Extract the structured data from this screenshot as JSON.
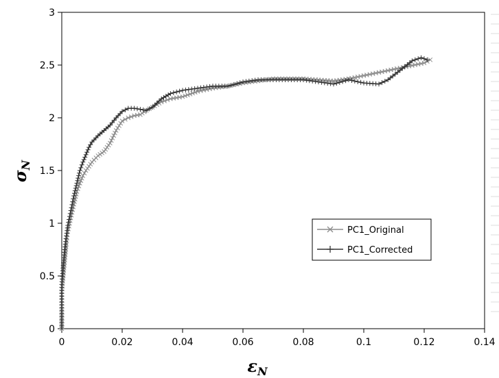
{
  "chart_data": {
    "type": "line",
    "title": "",
    "xlabel": "ε",
    "xlabel_sub": "N",
    "ylabel": "σ",
    "ylabel_sub": "N",
    "xlim": [
      0,
      0.14
    ],
    "ylim": [
      0,
      3
    ],
    "x_ticks": [
      "0",
      "0.02",
      "0.04",
      "0.06",
      "0.08",
      "0.1",
      "0.12",
      "0.14"
    ],
    "y_ticks": [
      "0",
      "0.5",
      "1",
      "1.5",
      "2",
      "2.5",
      "3"
    ],
    "grid": false,
    "legend_position": "lower-right",
    "series": [
      {
        "name": "PC1_Original",
        "color": "#8c8c8c",
        "marker": "x",
        "points": [
          [
            0,
            0
          ],
          [
            0,
            0.35
          ],
          [
            0.0005,
            0.5
          ],
          [
            0.001,
            0.65
          ],
          [
            0.0015,
            0.8
          ],
          [
            0.002,
            0.92
          ],
          [
            0.003,
            1.05
          ],
          [
            0.004,
            1.18
          ],
          [
            0.005,
            1.3
          ],
          [
            0.006,
            1.38
          ],
          [
            0.007,
            1.45
          ],
          [
            0.008,
            1.5
          ],
          [
            0.009,
            1.54
          ],
          [
            0.01,
            1.58
          ],
          [
            0.012,
            1.64
          ],
          [
            0.014,
            1.68
          ],
          [
            0.016,
            1.76
          ],
          [
            0.018,
            1.88
          ],
          [
            0.02,
            1.97
          ],
          [
            0.022,
            2.0
          ],
          [
            0.024,
            2.02
          ],
          [
            0.026,
            2.03
          ],
          [
            0.028,
            2.07
          ],
          [
            0.03,
            2.1
          ],
          [
            0.033,
            2.15
          ],
          [
            0.036,
            2.18
          ],
          [
            0.04,
            2.2
          ],
          [
            0.045,
            2.25
          ],
          [
            0.05,
            2.28
          ],
          [
            0.055,
            2.3
          ],
          [
            0.06,
            2.33
          ],
          [
            0.065,
            2.35
          ],
          [
            0.07,
            2.37
          ],
          [
            0.075,
            2.37
          ],
          [
            0.08,
            2.37
          ],
          [
            0.085,
            2.36
          ],
          [
            0.09,
            2.35
          ],
          [
            0.095,
            2.37
          ],
          [
            0.1,
            2.4
          ],
          [
            0.105,
            2.43
          ],
          [
            0.11,
            2.46
          ],
          [
            0.115,
            2.49
          ],
          [
            0.12,
            2.52
          ],
          [
            0.122,
            2.55
          ]
        ]
      },
      {
        "name": "PC1_Corrected",
        "color": "#333333",
        "marker": "+",
        "points": [
          [
            0,
            0
          ],
          [
            0,
            0.42
          ],
          [
            0.0005,
            0.6
          ],
          [
            0.001,
            0.75
          ],
          [
            0.0015,
            0.88
          ],
          [
            0.002,
            0.98
          ],
          [
            0.003,
            1.12
          ],
          [
            0.004,
            1.26
          ],
          [
            0.005,
            1.38
          ],
          [
            0.006,
            1.5
          ],
          [
            0.007,
            1.58
          ],
          [
            0.008,
            1.65
          ],
          [
            0.009,
            1.72
          ],
          [
            0.01,
            1.77
          ],
          [
            0.012,
            1.83
          ],
          [
            0.014,
            1.88
          ],
          [
            0.016,
            1.93
          ],
          [
            0.018,
            2.0
          ],
          [
            0.02,
            2.06
          ],
          [
            0.022,
            2.09
          ],
          [
            0.024,
            2.09
          ],
          [
            0.026,
            2.08
          ],
          [
            0.028,
            2.07
          ],
          [
            0.03,
            2.1
          ],
          [
            0.033,
            2.18
          ],
          [
            0.036,
            2.23
          ],
          [
            0.04,
            2.26
          ],
          [
            0.045,
            2.28
          ],
          [
            0.05,
            2.3
          ],
          [
            0.055,
            2.3
          ],
          [
            0.06,
            2.34
          ],
          [
            0.065,
            2.36
          ],
          [
            0.07,
            2.36
          ],
          [
            0.075,
            2.36
          ],
          [
            0.08,
            2.36
          ],
          [
            0.085,
            2.34
          ],
          [
            0.09,
            2.32
          ],
          [
            0.095,
            2.36
          ],
          [
            0.1,
            2.33
          ],
          [
            0.105,
            2.32
          ],
          [
            0.108,
            2.36
          ],
          [
            0.112,
            2.45
          ],
          [
            0.116,
            2.54
          ],
          [
            0.119,
            2.57
          ],
          [
            0.121,
            2.55
          ]
        ]
      }
    ]
  }
}
